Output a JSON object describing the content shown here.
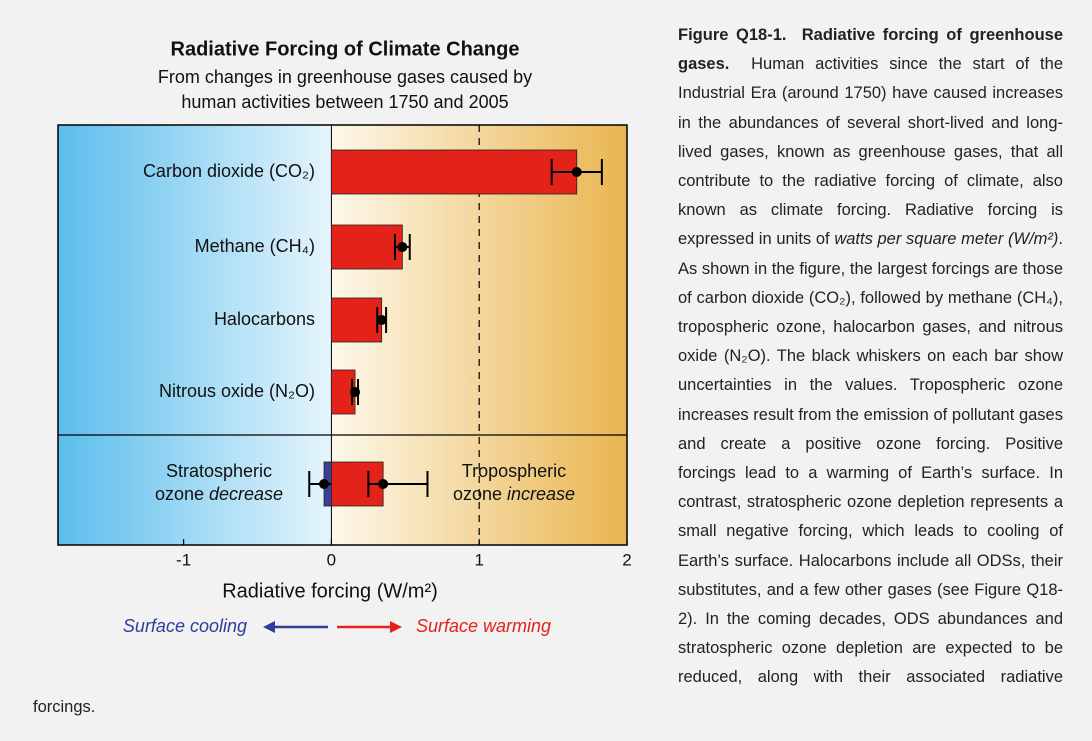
{
  "chart_data": {
    "type": "bar",
    "orientation": "horizontal",
    "title": "Radiative Forcing of Climate Change",
    "subtitle": [
      "From changes in greenhouse gases caused by",
      "human activities between 1750 and 2005"
    ],
    "x_label": "Radiative forcing  (W/m²)",
    "categories": [
      "Carbon dioxide (CO₂)",
      "Methane (CH₄)",
      "Halocarbons",
      "Nitrous oxide (N₂O)"
    ],
    "values": [
      1.66,
      0.48,
      0.34,
      0.16
    ],
    "lower": [
      1.49,
      0.43,
      0.31,
      0.14
    ],
    "upper": [
      1.83,
      0.53,
      0.37,
      0.18
    ],
    "color": "#e32219",
    "ozone": [
      {
        "label": "Stratospheric",
        "label_2": "ozone",
        "emphasis": "decrease",
        "value": -0.05,
        "lower": -0.15,
        "upper": 0.05,
        "color": "#3b3f9a"
      },
      {
        "label": "Tropospheric",
        "label_2": "ozone",
        "emphasis": "increase",
        "value": 0.35,
        "lower": 0.25,
        "upper": 0.65,
        "color": "#e32219"
      }
    ],
    "xlim": [
      -1.85,
      2.0
    ],
    "xticks": [
      -1,
      0,
      1,
      2
    ],
    "reference_line": 1,
    "arrows": {
      "cooling": "Surface cooling",
      "warming": "Surface warming",
      "cooling_color": "#2e3d9c",
      "warming_color": "#e32219"
    }
  },
  "caption": {
    "label": "Figure Q18-1.",
    "title": "Radiative forcing of greenhouse gases.",
    "text_1": "Human activities since the start of the Industrial Era (around 1750) have caused increases in the abundances of several short-lived and long-lived gases, known as greenhouse gases, that all contribute to the radiative forcing of climate, also known as climate forcing. Radiative forcing is expressed in units of",
    "units": "watts per square meter (W/m²)",
    "text_2": ". As shown in the figure, the largest forcings are those of carbon dioxide (CO₂), followed by methane (CH₄), tropospheric ozone, halocarbon gases, and nitrous oxide (N₂O). The black whiskers on each bar show uncertainties in the values. Tropospheric ozone increases result from the emission of pollutant gases and create a positive ozone forcing. Positive forcings lead to a warming of Earth’s surface. In contrast, stratospheric ozone depletion represents a small negative forcing, which leads to cooling of Earth’s surface. Halocarbons include all ODSs, their substitutes, and a few other gases (see Figure Q18-2). In the coming decades, ODS abundances and stratospheric ozone depletion are expected to be reduced, along with their associated radiative forcings."
  }
}
